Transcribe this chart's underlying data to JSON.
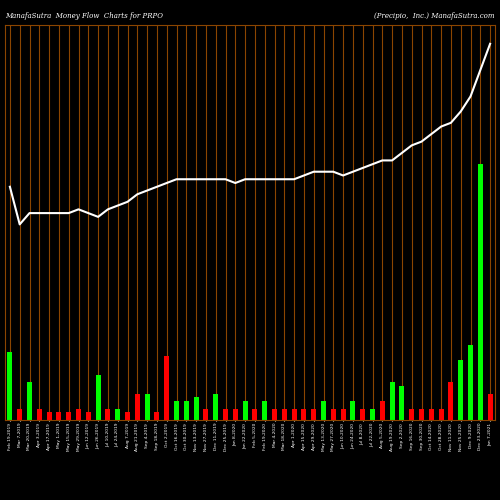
{
  "title_left": "ManafaSutra  Money Flow  Charts for PRPO",
  "title_right": "(Precipio,  Inc.) ManafaSutra.com",
  "bg_color": "#000000",
  "plot_bg_color": "#000000",
  "grid_color": "#8B4500",
  "line_color": "#ffffff",
  "bar_green": "#00ff00",
  "bar_red": "#ff0000",
  "n_bars": 50,
  "x_labels": [
    "Feb 19,2019",
    "Mar 7,2019",
    "Mar 20,2019",
    "Apr 3,2019",
    "Apr 17,2019",
    "May 1,2019",
    "May 15,2019",
    "May 29,2019",
    "Jun 12,2019",
    "Jun 26,2019",
    "Jul 10,2019",
    "Jul 24,2019",
    "Aug 7,2019",
    "Aug 21,2019",
    "Sep 4,2019",
    "Sep 18,2019",
    "Oct 2,2019",
    "Oct 16,2019",
    "Oct 30,2019",
    "Nov 13,2019",
    "Nov 27,2019",
    "Dec 11,2019",
    "Dec 25,2019",
    "Jan 8,2020",
    "Jan 22,2020",
    "Feb 5,2020",
    "Feb 19,2020",
    "Mar 4,2020",
    "Mar 18,2020",
    "Apr 1,2020",
    "Apr 15,2020",
    "Apr 29,2020",
    "May 13,2020",
    "May 27,2020",
    "Jun 10,2020",
    "Jun 24,2020",
    "Jul 8,2020",
    "Jul 22,2020",
    "Aug 5,2020",
    "Aug 19,2020",
    "Sep 2,2020",
    "Sep 16,2020",
    "Sep 30,2020",
    "Oct 14,2020",
    "Oct 28,2020",
    "Nov 11,2020",
    "Nov 25,2020",
    "Dec 9,2020",
    "Dec 23,2020",
    "Jan 7,2021"
  ],
  "bar_heights": [
    0.18,
    0.03,
    0.1,
    0.03,
    0.02,
    0.02,
    0.02,
    0.03,
    0.02,
    0.12,
    0.03,
    0.03,
    0.02,
    0.07,
    0.07,
    0.02,
    0.17,
    0.05,
    0.05,
    0.06,
    0.03,
    0.07,
    0.03,
    0.03,
    0.05,
    0.03,
    0.05,
    0.03,
    0.03,
    0.03,
    0.03,
    0.03,
    0.05,
    0.03,
    0.03,
    0.05,
    0.03,
    0.03,
    0.05,
    0.1,
    0.09,
    0.03,
    0.03,
    0.03,
    0.03,
    0.1,
    0.16,
    0.2,
    0.68,
    0.07
  ],
  "bar_colors": [
    "g",
    "r",
    "g",
    "r",
    "r",
    "r",
    "r",
    "r",
    "r",
    "g",
    "r",
    "g",
    "r",
    "r",
    "g",
    "r",
    "r",
    "g",
    "g",
    "g",
    "r",
    "g",
    "r",
    "r",
    "g",
    "r",
    "g",
    "r",
    "r",
    "r",
    "r",
    "r",
    "g",
    "r",
    "r",
    "g",
    "r",
    "g",
    "r",
    "g",
    "g",
    "r",
    "r",
    "r",
    "r",
    "r",
    "g",
    "g",
    "g",
    "r"
  ],
  "line_values": [
    0.62,
    0.52,
    0.55,
    0.55,
    0.55,
    0.55,
    0.55,
    0.56,
    0.55,
    0.54,
    0.56,
    0.57,
    0.58,
    0.6,
    0.61,
    0.62,
    0.63,
    0.64,
    0.64,
    0.64,
    0.64,
    0.64,
    0.64,
    0.63,
    0.64,
    0.64,
    0.64,
    0.64,
    0.64,
    0.64,
    0.65,
    0.66,
    0.66,
    0.66,
    0.65,
    0.66,
    0.67,
    0.68,
    0.69,
    0.69,
    0.71,
    0.73,
    0.74,
    0.76,
    0.78,
    0.79,
    0.82,
    0.86,
    0.93,
    1.0
  ],
  "ylim": [
    0,
    1.05
  ],
  "figsize": [
    5.0,
    5.0
  ],
  "dpi": 100
}
